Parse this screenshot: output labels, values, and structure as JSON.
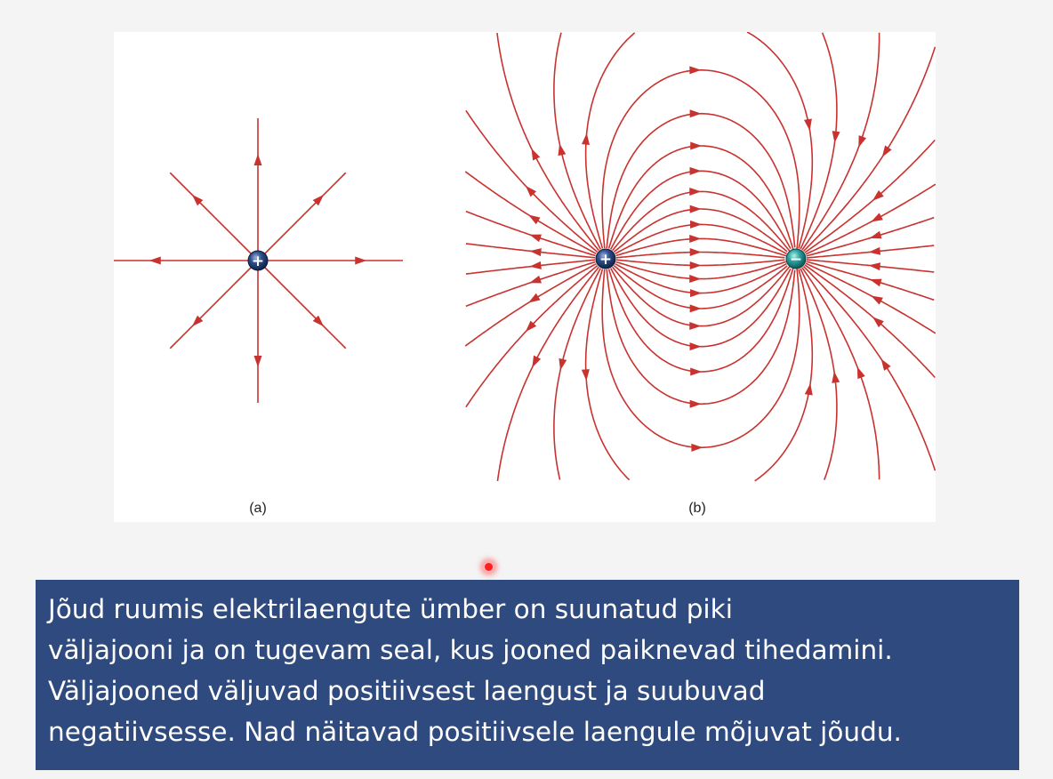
{
  "figure": {
    "panel_a_caption": "(a)",
    "panel_b_caption": "(b)",
    "positive_symbol": "+",
    "negative_symbol": "−",
    "colors": {
      "field_line": "#c8322f",
      "positive_charge": "#1c3a6e",
      "negative_charge": "#1f8c8c"
    }
  },
  "text_box": {
    "lines": [
      "Jõud ruumis elektrilaengute ümber on suunatud piki",
      "väljajooni ja on tugevam seal, kus jooned paiknevad tihedamini.",
      "Väljajooned väljuvad positiivsest laengust ja suubuvad",
      "negatiivsesse.  Nad näitavad positiivsele laengule mõjuvat jõudu."
    ],
    "background_color": "#2f4a7e"
  }
}
